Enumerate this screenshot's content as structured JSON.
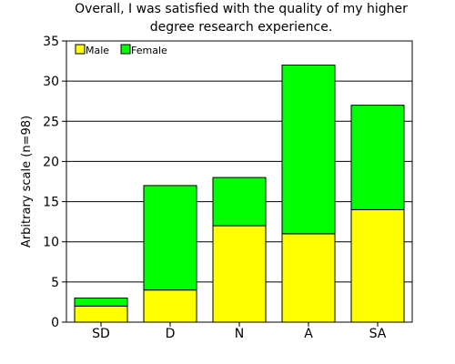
{
  "chart_data": {
    "type": "bar",
    "stacked": true,
    "title": "Overall, I was satisfied with the quality of my higher\ndegree research experience.",
    "xlabel": "",
    "ylabel": "Arbitrary scale (n=98)",
    "categories": [
      "SD",
      "D",
      "N",
      "A",
      "SA"
    ],
    "series": [
      {
        "name": "Male",
        "values": [
          2,
          4,
          12,
          11,
          14
        ],
        "color": "#ffff00"
      },
      {
        "name": "Female",
        "values": [
          1,
          13,
          6,
          21,
          13
        ],
        "color": "#00ff00"
      }
    ],
    "ylim": [
      0,
      35
    ],
    "yticks": [
      0,
      5,
      10,
      15,
      20,
      25,
      30,
      35
    ],
    "grid": true,
    "legend_position": "top-left"
  }
}
